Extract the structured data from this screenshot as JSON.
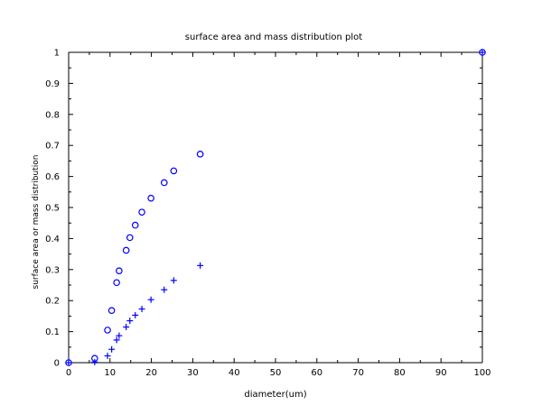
{
  "chart_data": {
    "type": "scatter",
    "title": "surface area and mass distribution plot",
    "xlabel": "diameter(um)",
    "ylabel": "surface area or mass distribution",
    "xlim": [
      0,
      100
    ],
    "ylim": [
      0,
      1
    ],
    "x_ticks": [
      0,
      10,
      20,
      30,
      40,
      50,
      60,
      70,
      80,
      90,
      100
    ],
    "y_ticks": [
      0,
      0.1,
      0.2,
      0.3,
      0.4,
      0.5,
      0.6,
      0.7,
      0.8,
      0.9,
      1
    ],
    "grid": false,
    "series_color": "#0000ff",
    "series": [
      {
        "marker": "circle",
        "points": [
          [
            0,
            0
          ],
          [
            6.3,
            0.014
          ],
          [
            9.4,
            0.105
          ],
          [
            10.4,
            0.168
          ],
          [
            11.6,
            0.258
          ],
          [
            12.2,
            0.296
          ],
          [
            13.9,
            0.362
          ],
          [
            14.8,
            0.403
          ],
          [
            16.1,
            0.443
          ],
          [
            17.7,
            0.485
          ],
          [
            19.9,
            0.53
          ],
          [
            23.1,
            0.58
          ],
          [
            25.4,
            0.618
          ],
          [
            31.8,
            0.672
          ],
          [
            100,
            1.0
          ]
        ]
      },
      {
        "marker": "plus",
        "points": [
          [
            0,
            0
          ],
          [
            6.3,
            0.002
          ],
          [
            9.4,
            0.022
          ],
          [
            10.4,
            0.043
          ],
          [
            11.6,
            0.073
          ],
          [
            12.2,
            0.087
          ],
          [
            13.9,
            0.115
          ],
          [
            14.8,
            0.135
          ],
          [
            16.1,
            0.153
          ],
          [
            17.7,
            0.173
          ],
          [
            19.9,
            0.203
          ],
          [
            23.1,
            0.235
          ],
          [
            25.4,
            0.265
          ],
          [
            31.8,
            0.313
          ],
          [
            100,
            1.0
          ]
        ]
      }
    ]
  }
}
